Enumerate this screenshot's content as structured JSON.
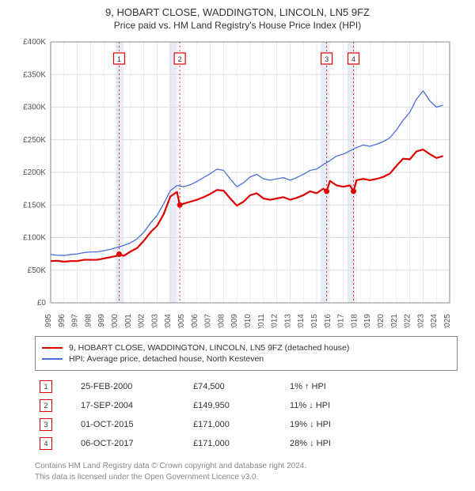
{
  "title": "9, HOBART CLOSE, WADDINGTON, LINCOLN, LN5 9FZ",
  "subtitle": "Price paid vs. HM Land Registry's House Price Index (HPI)",
  "chart": {
    "type": "line",
    "background_color": "#ffffff",
    "grid_color": "#dddddd",
    "plot_border_color": "#888888",
    "title_fontsize": 13,
    "subtitle_fontsize": 12,
    "axis_font_size": 10,
    "x_years": [
      1995,
      1996,
      1997,
      1998,
      1999,
      2000,
      2001,
      2002,
      2003,
      2004,
      2005,
      2006,
      2007,
      2008,
      2009,
      2010,
      2011,
      2012,
      2013,
      2014,
      2015,
      2016,
      2017,
      2018,
      2019,
      2020,
      2021,
      2022,
      2023,
      2024,
      2025
    ],
    "x_tick_indices": [
      0,
      1,
      2,
      3,
      4,
      5,
      6,
      7,
      8,
      9,
      10,
      11,
      12,
      13,
      14,
      15,
      16,
      17,
      18,
      19,
      20,
      21,
      22,
      23,
      24,
      25,
      26,
      27,
      28,
      29,
      30
    ],
    "y_min": 0,
    "y_max": 400000,
    "y_tick_step": 50000,
    "y_tick_prefix": "£",
    "y_tick_suffix": "K",
    "highlight_band_color": "#e8edf5",
    "highlight_bands": [
      {
        "x_start": 1999.9,
        "x_end": 2000.5
      },
      {
        "x_start": 2003.9,
        "x_end": 2004.5
      },
      {
        "x_start": 2015.3,
        "x_end": 2015.9
      },
      {
        "x_start": 2017.3,
        "x_end": 2017.9
      }
    ],
    "sale_marker_line_color": "#f02020",
    "sale_marker_dash": "2,3",
    "sale_marker_border": "#e00000",
    "sale_marker_text_color": "#333333",
    "sale_marker_bg": "#ffffff",
    "series": [
      {
        "id": "price_paid",
        "color": "#e00000",
        "width": 2.2,
        "label": "9, HOBART CLOSE, WADDINGTON, LINCOLN, LN5 9FZ (detached house)",
        "data": [
          [
            1995.0,
            64000
          ],
          [
            1995.5,
            64500
          ],
          [
            1996.0,
            63000
          ],
          [
            1996.5,
            64000
          ],
          [
            1997.0,
            64000
          ],
          [
            1997.5,
            66000
          ],
          [
            1998.0,
            66000
          ],
          [
            1998.5,
            66000
          ],
          [
            1999.0,
            68000
          ],
          [
            1999.5,
            70000
          ],
          [
            2000.0,
            72000
          ],
          [
            2000.15,
            74500
          ],
          [
            2000.5,
            72000
          ],
          [
            2001.0,
            78500
          ],
          [
            2001.5,
            84000
          ],
          [
            2002.0,
            95000
          ],
          [
            2002.5,
            108000
          ],
          [
            2003.0,
            118000
          ],
          [
            2003.5,
            136000
          ],
          [
            2004.0,
            163000
          ],
          [
            2004.5,
            170000
          ],
          [
            2004.7,
            149950
          ],
          [
            2005.0,
            152000
          ],
          [
            2005.5,
            155000
          ],
          [
            2006.0,
            158000
          ],
          [
            2006.5,
            162000
          ],
          [
            2007.0,
            167000
          ],
          [
            2007.5,
            173000
          ],
          [
            2008.0,
            172000
          ],
          [
            2008.5,
            160000
          ],
          [
            2009.0,
            149000
          ],
          [
            2009.5,
            155000
          ],
          [
            2010.0,
            165000
          ],
          [
            2010.5,
            168000
          ],
          [
            2011.0,
            160000
          ],
          [
            2011.5,
            158000
          ],
          [
            2012.0,
            160000
          ],
          [
            2012.5,
            162000
          ],
          [
            2013.0,
            158000
          ],
          [
            2013.5,
            161000
          ],
          [
            2014.0,
            165000
          ],
          [
            2014.5,
            171000
          ],
          [
            2015.0,
            168000
          ],
          [
            2015.5,
            175000
          ],
          [
            2015.75,
            171000
          ],
          [
            2016.0,
            187000
          ],
          [
            2016.5,
            180000
          ],
          [
            2017.0,
            178000
          ],
          [
            2017.5,
            180000
          ],
          [
            2017.77,
            171000
          ],
          [
            2018.0,
            188000
          ],
          [
            2018.5,
            190000
          ],
          [
            2019.0,
            188000
          ],
          [
            2019.5,
            190000
          ],
          [
            2020.0,
            193000
          ],
          [
            2020.5,
            198000
          ],
          [
            2021.0,
            210000
          ],
          [
            2021.5,
            221000
          ],
          [
            2022.0,
            220000
          ],
          [
            2022.5,
            232000
          ],
          [
            2023.0,
            235000
          ],
          [
            2023.5,
            228000
          ],
          [
            2024.0,
            222000
          ],
          [
            2024.5,
            225000
          ]
        ]
      },
      {
        "id": "hpi",
        "color": "#4a6fd8",
        "width": 1.3,
        "label": "HPI: Average price, detached house, North Kesteven",
        "data": [
          [
            1995.0,
            74000
          ],
          [
            1995.5,
            73000
          ],
          [
            1996.0,
            72500
          ],
          [
            1996.5,
            74000
          ],
          [
            1997.0,
            75000
          ],
          [
            1997.5,
            77000
          ],
          [
            1998.0,
            78000
          ],
          [
            1998.5,
            78000
          ],
          [
            1999.0,
            80000
          ],
          [
            1999.5,
            82000
          ],
          [
            2000.0,
            85000
          ],
          [
            2000.5,
            88000
          ],
          [
            2001.0,
            92000
          ],
          [
            2001.5,
            98000
          ],
          [
            2002.0,
            108000
          ],
          [
            2002.5,
            122000
          ],
          [
            2003.0,
            134000
          ],
          [
            2003.5,
            152000
          ],
          [
            2004.0,
            172000
          ],
          [
            2004.5,
            180000
          ],
          [
            2005.0,
            178000
          ],
          [
            2005.5,
            181000
          ],
          [
            2006.0,
            186000
          ],
          [
            2006.5,
            192000
          ],
          [
            2007.0,
            198000
          ],
          [
            2007.5,
            205000
          ],
          [
            2008.0,
            203000
          ],
          [
            2008.5,
            190000
          ],
          [
            2009.0,
            178000
          ],
          [
            2009.5,
            184000
          ],
          [
            2010.0,
            193000
          ],
          [
            2010.5,
            197000
          ],
          [
            2011.0,
            190000
          ],
          [
            2011.5,
            188000
          ],
          [
            2012.0,
            190000
          ],
          [
            2012.5,
            192000
          ],
          [
            2013.0,
            188000
          ],
          [
            2013.5,
            192000
          ],
          [
            2014.0,
            197000
          ],
          [
            2014.5,
            203000
          ],
          [
            2015.0,
            205000
          ],
          [
            2015.5,
            212000
          ],
          [
            2016.0,
            218000
          ],
          [
            2016.5,
            225000
          ],
          [
            2017.0,
            228000
          ],
          [
            2017.5,
            233000
          ],
          [
            2018.0,
            238000
          ],
          [
            2018.5,
            242000
          ],
          [
            2019.0,
            240000
          ],
          [
            2019.5,
            243000
          ],
          [
            2020.0,
            247000
          ],
          [
            2020.5,
            253000
          ],
          [
            2021.0,
            265000
          ],
          [
            2021.5,
            280000
          ],
          [
            2022.0,
            292000
          ],
          [
            2022.5,
            312000
          ],
          [
            2023.0,
            325000
          ],
          [
            2023.5,
            310000
          ],
          [
            2024.0,
            300000
          ],
          [
            2024.5,
            303000
          ]
        ]
      }
    ],
    "sale_markers": [
      {
        "n": "1",
        "x": 2000.15,
        "y": 74500
      },
      {
        "n": "2",
        "x": 2004.71,
        "y": 149950
      },
      {
        "n": "3",
        "x": 2015.75,
        "y": 171000
      },
      {
        "n": "4",
        "x": 2017.77,
        "y": 171000
      }
    ]
  },
  "legend": {
    "border_color": "#888888"
  },
  "sales": [
    {
      "n": "1",
      "date": "25-FEB-2000",
      "price": "£74,500",
      "pct": "1%",
      "arrow": "↑",
      "rel": "HPI"
    },
    {
      "n": "2",
      "date": "17-SEP-2004",
      "price": "£149,950",
      "pct": "11%",
      "arrow": "↓",
      "rel": "HPI"
    },
    {
      "n": "3",
      "date": "01-OCT-2015",
      "price": "£171,000",
      "pct": "19%",
      "arrow": "↓",
      "rel": "HPI"
    },
    {
      "n": "4",
      "date": "06-OCT-2017",
      "price": "£171,000",
      "pct": "28%",
      "arrow": "↓",
      "rel": "HPI"
    }
  ],
  "footer": {
    "line1": "Contains HM Land Registry data © Crown copyright and database right 2024.",
    "line2": "This data is licensed under the Open Government Licence v3.0."
  },
  "colors": {
    "marker_border": "#e00000",
    "marker_text": "#333333",
    "price_line": "#e00000",
    "hpi_line": "#4a6fd8"
  }
}
